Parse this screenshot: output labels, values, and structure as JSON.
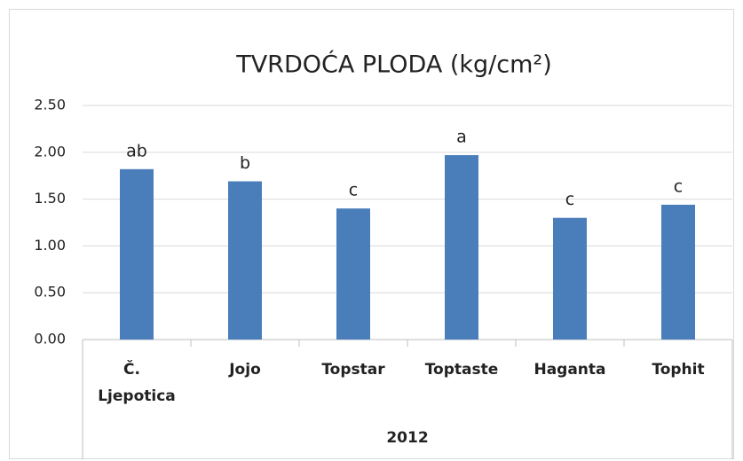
{
  "chart_data": {
    "type": "bar",
    "title": "TVRDOĆA PLODA (kg/cm²)",
    "categories": [
      "Č. Ljepotica",
      "Jojo",
      "Topstar",
      "Toptaste",
      "Haganta",
      "Tophit"
    ],
    "values": [
      1.82,
      1.69,
      1.4,
      1.97,
      1.3,
      1.44
    ],
    "annotations": [
      "ab",
      "b",
      "c",
      "a",
      "c",
      "c"
    ],
    "group_label": "2012",
    "color": "#4a7ebb",
    "ylim": [
      0,
      2.5
    ],
    "yticks": [
      {
        "value": 0,
        "label": "0.00"
      },
      {
        "value": 0.5,
        "label": "0.50"
      },
      {
        "value": 1,
        "label": "1.00"
      },
      {
        "value": 1.5,
        "label": "1.50"
      },
      {
        "value": 2,
        "label": "2.00"
      },
      {
        "value": 2.5,
        "label": "2.50"
      }
    ],
    "grid": true
  }
}
